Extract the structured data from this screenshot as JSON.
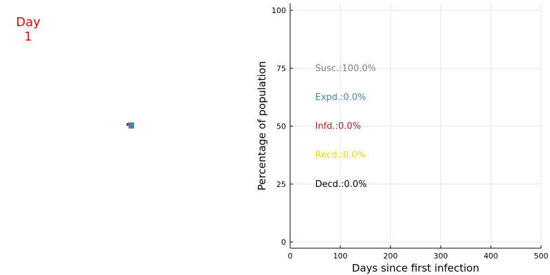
{
  "day": {
    "word": "Day",
    "number": "1",
    "color": "#e8000b"
  },
  "grid_view": {
    "cells": [
      {
        "state": "exposed",
        "color": "#4682b4"
      },
      {
        "state": "infected",
        "color": "#b22222"
      }
    ]
  },
  "chart_data": {
    "type": "line",
    "xlabel": "Days since first infection",
    "ylabel": "Percentage of population",
    "xlim": [
      0,
      500
    ],
    "ylim": [
      0,
      100
    ],
    "xticks": [
      0,
      100,
      200,
      300,
      400,
      500
    ],
    "yticks": [
      0,
      25,
      50,
      75,
      100
    ],
    "grid": true,
    "series": [
      {
        "name": "Susc.",
        "value": 100.0,
        "label": "Susc.:100.0%",
        "color": "#808080"
      },
      {
        "name": "Expd.",
        "value": 0.0,
        "label": "Expd.:0.0%",
        "color": "#4682b4"
      },
      {
        "name": "Infd.",
        "value": 0.0,
        "label": "Infd.:0.0%",
        "color": "#b22222"
      },
      {
        "name": "Recd.",
        "value": 0.0,
        "label": "Recd.:0.0%",
        "color": "#ffd700"
      },
      {
        "name": "Decd.",
        "value": 0.0,
        "label": "Decd.:0.0%",
        "color": "#000000"
      }
    ]
  }
}
